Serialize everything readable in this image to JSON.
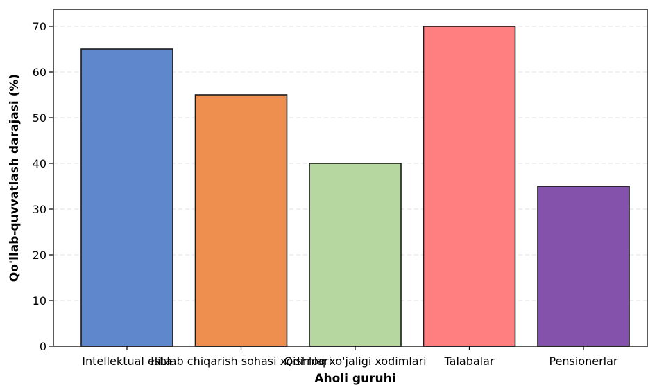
{
  "chart_data": {
    "type": "bar",
    "title": "",
    "xlabel": "Aholi guruhi",
    "ylabel": "Qo'llab-quvvatlash darajasi (%)",
    "categories": [
      "Intellektual elita",
      "Ishlab chiqarish sohasi xodimlari",
      "Qishloq xo'jaligi xodimlari",
      "Talabalar",
      "Pensionerlar"
    ],
    "values": [
      65,
      55,
      40,
      70,
      35
    ],
    "colors": [
      "#5f87cc",
      "#ee8f4f",
      "#b7d7a1",
      "#ff7f80",
      "#8452ab"
    ],
    "ylim": [
      0,
      72
    ],
    "yticks": [
      "0",
      "10",
      "20",
      "30",
      "40",
      "50",
      "60",
      "70"
    ],
    "grid": true,
    "legend": "none"
  }
}
